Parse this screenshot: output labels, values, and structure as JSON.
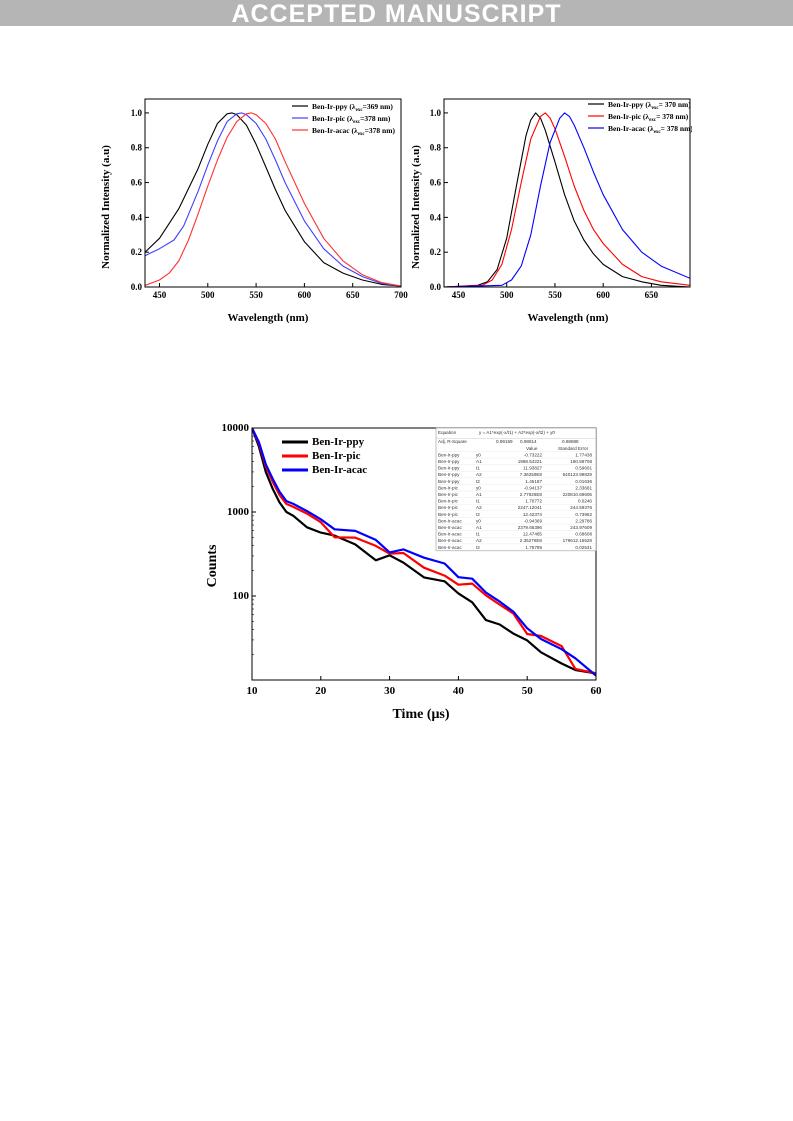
{
  "banner": "ACCEPTED MANUSCRIPT",
  "colors": {
    "ppy": "#000000",
    "pic": "#ff0000",
    "acac": "#0000ff",
    "pic_left": "#3f3fff",
    "acac_left": "#ff3030"
  },
  "chart_data": [
    {
      "type": "line",
      "xlabel": "Wavelength (nm)",
      "ylabel": "Normalized Intensity (a.u)",
      "xlim": [
        435,
        700
      ],
      "ylim": [
        0,
        1.08
      ],
      "xticks": [
        "450",
        "500",
        "550",
        "600",
        "650",
        "700"
      ],
      "yticks": [
        "0.0",
        "0.2",
        "0.4",
        "0.6",
        "0.8",
        "1.0"
      ],
      "legend": [
        {
          "pre": "Ben-Ir-ppy (λ",
          "sub": "exc",
          "post": "=369 nm)"
        },
        {
          "pre": "Ben-Ir-pic (λ",
          "sub": "exc",
          "post": "=378 nm)"
        },
        {
          "pre": "Ben-Ir-acac (λ",
          "sub": "exc",
          "post": "=378 nm)"
        }
      ],
      "series": [
        {
          "name": "Ben-Ir-ppy",
          "x": [
            435,
            450,
            470,
            490,
            500,
            510,
            520,
            525,
            530,
            540,
            550,
            560,
            570,
            580,
            600,
            620,
            640,
            660,
            680,
            700
          ],
          "y": [
            0.2,
            0.28,
            0.45,
            0.68,
            0.82,
            0.94,
            0.995,
            1.0,
            0.99,
            0.93,
            0.82,
            0.69,
            0.56,
            0.44,
            0.26,
            0.14,
            0.08,
            0.04,
            0.015,
            0.005
          ]
        },
        {
          "name": "Ben-Ir-pic",
          "x": [
            435,
            450,
            465,
            475,
            490,
            500,
            510,
            520,
            530,
            535,
            540,
            550,
            560,
            570,
            580,
            600,
            620,
            640,
            660,
            680,
            700
          ],
          "y": [
            0.18,
            0.22,
            0.27,
            0.35,
            0.55,
            0.7,
            0.84,
            0.95,
            0.995,
            1.0,
            0.99,
            0.94,
            0.85,
            0.73,
            0.6,
            0.38,
            0.22,
            0.12,
            0.06,
            0.02,
            0.005
          ]
        },
        {
          "name": "Ben-Ir-acac",
          "x": [
            435,
            450,
            460,
            470,
            480,
            490,
            500,
            510,
            520,
            530,
            540,
            545,
            550,
            560,
            570,
            580,
            600,
            620,
            640,
            660,
            680,
            700
          ],
          "y": [
            0.01,
            0.04,
            0.08,
            0.15,
            0.27,
            0.42,
            0.58,
            0.73,
            0.86,
            0.95,
            0.995,
            1.0,
            0.99,
            0.94,
            0.85,
            0.72,
            0.48,
            0.28,
            0.15,
            0.07,
            0.025,
            0.005
          ]
        }
      ]
    },
    {
      "type": "line",
      "xlabel": "Wavelength (nm)",
      "ylabel": "Normalized Intensity (a.u)",
      "xlim": [
        435,
        690
      ],
      "ylim": [
        0,
        1.08
      ],
      "xticks": [
        "450",
        "500",
        "550",
        "600",
        "650"
      ],
      "yticks": [
        "0.0",
        "0.2",
        "0.4",
        "0.6",
        "0.8",
        "1.0"
      ],
      "legend": [
        {
          "pre": "Ben-Ir-ppy (λ",
          "sub": "exc",
          "post": "= 370 nm)"
        },
        {
          "pre": "Ben-Ir-pic (λ",
          "sub": "exc",
          "post": "= 378 nm)"
        },
        {
          "pre": "Ben-Ir-acac (λ",
          "sub": "exc",
          "post": "= 378 nm)"
        }
      ],
      "series": [
        {
          "name": "Ben-Ir-ppy",
          "x": [
            435,
            470,
            480,
            490,
            500,
            510,
            520,
            525,
            530,
            535,
            540,
            550,
            560,
            570,
            580,
            590,
            600,
            620,
            640,
            660,
            690
          ],
          "y": [
            0,
            0.01,
            0.03,
            0.1,
            0.28,
            0.58,
            0.87,
            0.96,
            1.0,
            0.97,
            0.9,
            0.72,
            0.53,
            0.38,
            0.27,
            0.19,
            0.13,
            0.06,
            0.03,
            0.01,
            0
          ]
        },
        {
          "name": "Ben-Ir-pic",
          "x": [
            435,
            475,
            485,
            495,
            505,
            515,
            525,
            535,
            540,
            545,
            550,
            560,
            570,
            580,
            590,
            600,
            620,
            640,
            660,
            690
          ],
          "y": [
            0,
            0.01,
            0.04,
            0.13,
            0.33,
            0.6,
            0.85,
            0.98,
            1.0,
            0.97,
            0.91,
            0.75,
            0.58,
            0.44,
            0.33,
            0.25,
            0.13,
            0.06,
            0.03,
            0.01
          ]
        },
        {
          "name": "Ben-Ir-acac",
          "x": [
            435,
            495,
            505,
            515,
            525,
            535,
            545,
            555,
            560,
            565,
            570,
            580,
            590,
            600,
            620,
            640,
            660,
            690
          ],
          "y": [
            0,
            0.01,
            0.04,
            0.12,
            0.3,
            0.58,
            0.83,
            0.97,
            1.0,
            0.98,
            0.93,
            0.8,
            0.66,
            0.53,
            0.33,
            0.2,
            0.12,
            0.05
          ]
        }
      ]
    },
    {
      "type": "line",
      "xlabel": "Time (μs)",
      "ylabel": "Counts",
      "yscale": "log",
      "xlim": [
        10,
        60
      ],
      "ylim": [
        10,
        10000
      ],
      "xticks": [
        "10",
        "20",
        "30",
        "40",
        "50",
        "60"
      ],
      "yticks": [
        "100",
        "1000",
        "10000"
      ],
      "legend": [
        "Ben-Ir-ppy",
        "Ben-Ir-pic",
        "Ben-Ir-acac"
      ],
      "series": [
        {
          "name": "Ben-Ir-ppy",
          "x": [
            10,
            11,
            12,
            13,
            14,
            15,
            16,
            18,
            20,
            22,
            25,
            28,
            30,
            32,
            35,
            38,
            40,
            42,
            44,
            46,
            48,
            50,
            52,
            55,
            57,
            60
          ],
          "y": [
            10000,
            6000,
            3000,
            1900,
            1300,
            1000,
            900,
            700,
            560,
            450,
            370,
            300,
            260,
            225,
            170,
            130,
            110,
            80,
            55,
            42,
            35,
            28,
            22,
            18,
            14,
            12
          ]
        },
        {
          "name": "Ben-Ir-pic",
          "x": [
            10,
            11,
            12,
            13,
            14,
            15,
            16,
            18,
            20,
            22,
            25,
            28,
            30,
            32,
            35,
            38,
            40,
            42,
            44,
            46,
            48,
            50,
            52,
            55,
            57,
            60
          ],
          "y": [
            10000,
            6500,
            3500,
            2300,
            1600,
            1250,
            1150,
            950,
            750,
            600,
            480,
            380,
            330,
            290,
            230,
            180,
            150,
            120,
            95,
            70,
            55,
            42,
            32,
            22,
            15,
            11
          ]
        },
        {
          "name": "Ben-Ir-acac",
          "x": [
            10,
            11,
            12,
            13,
            14,
            15,
            16,
            18,
            20,
            22,
            25,
            28,
            30,
            32,
            35,
            38,
            40,
            42,
            44,
            46,
            48,
            50,
            52,
            55,
            57,
            60
          ],
          "y": [
            10000,
            6800,
            3700,
            2500,
            1750,
            1350,
            1250,
            1000,
            800,
            650,
            520,
            420,
            370,
            330,
            270,
            210,
            170,
            140,
            110,
            85,
            65,
            48,
            36,
            24,
            16,
            11
          ]
        }
      ],
      "fit_table": {
        "header": [
          "Equation",
          "y = A1*exp(-x/t1) + A2*exp(-x/t2) + y0"
        ],
        "adj": [
          "Adj. R-Square",
          "0.99159",
          "0.98814",
          "0.98888"
        ],
        "colhead": [
          "",
          "",
          "Value",
          "Standard Error"
        ],
        "rows": [
          [
            "Ben-Ir-ppy",
            "y0",
            "-0.73222",
            "1.77438"
          ],
          [
            "Ben-Ir-ppy",
            "A1",
            "1988.54221",
            "180.59708"
          ],
          [
            "Ben-Ir-ppy",
            "t1",
            "11.93827",
            "0.59601"
          ],
          [
            "Ben-Ir-ppy",
            "A2",
            "7.36259E8",
            "540123.99829"
          ],
          [
            "Ben-Ir-ppy",
            "t2",
            "1.45187",
            "0.01636"
          ],
          [
            "Ben-Ir-pic",
            "y0",
            "-0.94137",
            "2.33661"
          ],
          [
            "Ben-Ir-pic",
            "A1",
            "2.77926E8",
            "220810.69605"
          ],
          [
            "Ben-Ir-pic",
            "t1",
            "1.70772",
            "0.0246"
          ],
          [
            "Ben-Ir-pic",
            "A2",
            "2247.12041",
            "244.59376"
          ],
          [
            "Ben-Ir-pic",
            "t2",
            "12.42374",
            "0.73962"
          ],
          [
            "Ben-Ir-acac",
            "y0",
            "-0.94369",
            "2.29786"
          ],
          [
            "Ben-Ir-acac",
            "A1",
            "2379.66396",
            "243.97609"
          ],
          [
            "Ben-Ir-acac",
            "t1",
            "12.47465",
            "0.68608"
          ],
          [
            "Ben-Ir-acac",
            "A2",
            "2.35276E8",
            "179612.15529"
          ],
          [
            "Ben-Ir-acac",
            "t2",
            "1.75785",
            "0.02531"
          ]
        ]
      }
    }
  ]
}
